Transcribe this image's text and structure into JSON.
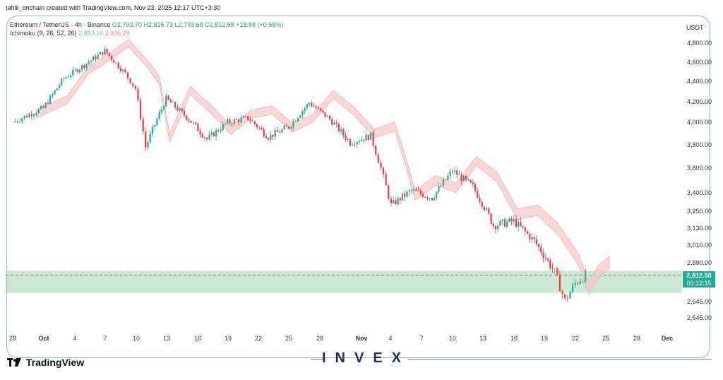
{
  "header": {
    "publisher_line": "tahlil_onchain created with TradingView.com, Nov 23, 2025 12:17 UTC+3:30"
  },
  "legend": {
    "symbol": "Ethereum / TetherUS · 4h · Binance",
    "open": "O2,793.70",
    "high": "H2,815.73",
    "low": "L2,793.69",
    "close": "C2,812.58",
    "change": "+18.88 (+0.68%)",
    "indicator": "Ichimoku (9, 26, 52, 26)",
    "indicator_val_a": "2,823.16",
    "indicator_val_b": "2,936.29"
  },
  "currency": "USDT",
  "y_ticks": [
    "4,800.00",
    "4,600.00",
    "4,400.00",
    "4,200.00",
    "4,000.00",
    "3,800.00",
    "3,600.00",
    "3,400.00",
    "3,250.00",
    "3,130.00",
    "3,010.00",
    "2,890.00",
    "2,645.00",
    "2,545.00"
  ],
  "x_ticks": [
    "28",
    "Oct",
    "4",
    "7",
    "10",
    "13",
    "16",
    "19",
    "22",
    "25",
    "28",
    "Nov",
    "4",
    "7",
    "10",
    "13",
    "16",
    "19",
    "22",
    "25",
    "28",
    "Dec"
  ],
  "last_price": {
    "price": "2,812.58",
    "countdown": "03:12:15"
  },
  "footer": {
    "brand": "TradingView",
    "watermark": "INVEX"
  },
  "colors": {
    "up": "#22ab94",
    "down": "#f23645",
    "cloud_bull": "#a5d6a7",
    "cloud_bear": "#f7c6c6",
    "support_zone": "#8fd19e"
  },
  "chart_data": {
    "type": "candlestick",
    "timeframe": "4h",
    "ylim": [
      2545,
      4850
    ],
    "support_zone": [
      2700,
      2840
    ],
    "close_series": [
      {
        "x": "Sep 28",
        "y": 4000
      },
      {
        "x": "Oct 1",
        "y": 4140
      },
      {
        "x": "Oct 3",
        "y": 4430
      },
      {
        "x": "Oct 5",
        "y": 4570
      },
      {
        "x": "Oct 7",
        "y": 4720
      },
      {
        "x": "Oct 9",
        "y": 4480
      },
      {
        "x": "Oct 10",
        "y": 4330
      },
      {
        "x": "Oct 11",
        "y": 3780
      },
      {
        "x": "Oct 13",
        "y": 4230
      },
      {
        "x": "Oct 15",
        "y": 4050
      },
      {
        "x": "Oct 17",
        "y": 3850
      },
      {
        "x": "Oct 19",
        "y": 4000
      },
      {
        "x": "Oct 21",
        "y": 4040
      },
      {
        "x": "Oct 23",
        "y": 3870
      },
      {
        "x": "Oct 25",
        "y": 3960
      },
      {
        "x": "Oct 27",
        "y": 4190
      },
      {
        "x": "Oct 29",
        "y": 4030
      },
      {
        "x": "Oct 31",
        "y": 3820
      },
      {
        "x": "Nov 2",
        "y": 3880
      },
      {
        "x": "Nov 3",
        "y": 3600
      },
      {
        "x": "Nov 4",
        "y": 3300
      },
      {
        "x": "Nov 6",
        "y": 3420
      },
      {
        "x": "Nov 8",
        "y": 3360
      },
      {
        "x": "Nov 10",
        "y": 3580
      },
      {
        "x": "Nov 12",
        "y": 3450
      },
      {
        "x": "Nov 14",
        "y": 3150
      },
      {
        "x": "Nov 16",
        "y": 3180
      },
      {
        "x": "Nov 18",
        "y": 3040
      },
      {
        "x": "Nov 20",
        "y": 2830
      },
      {
        "x": "Nov 21",
        "y": 2650
      },
      {
        "x": "Nov 22",
        "y": 2760
      },
      {
        "x": "Nov 23",
        "y": 2812.58
      }
    ]
  }
}
